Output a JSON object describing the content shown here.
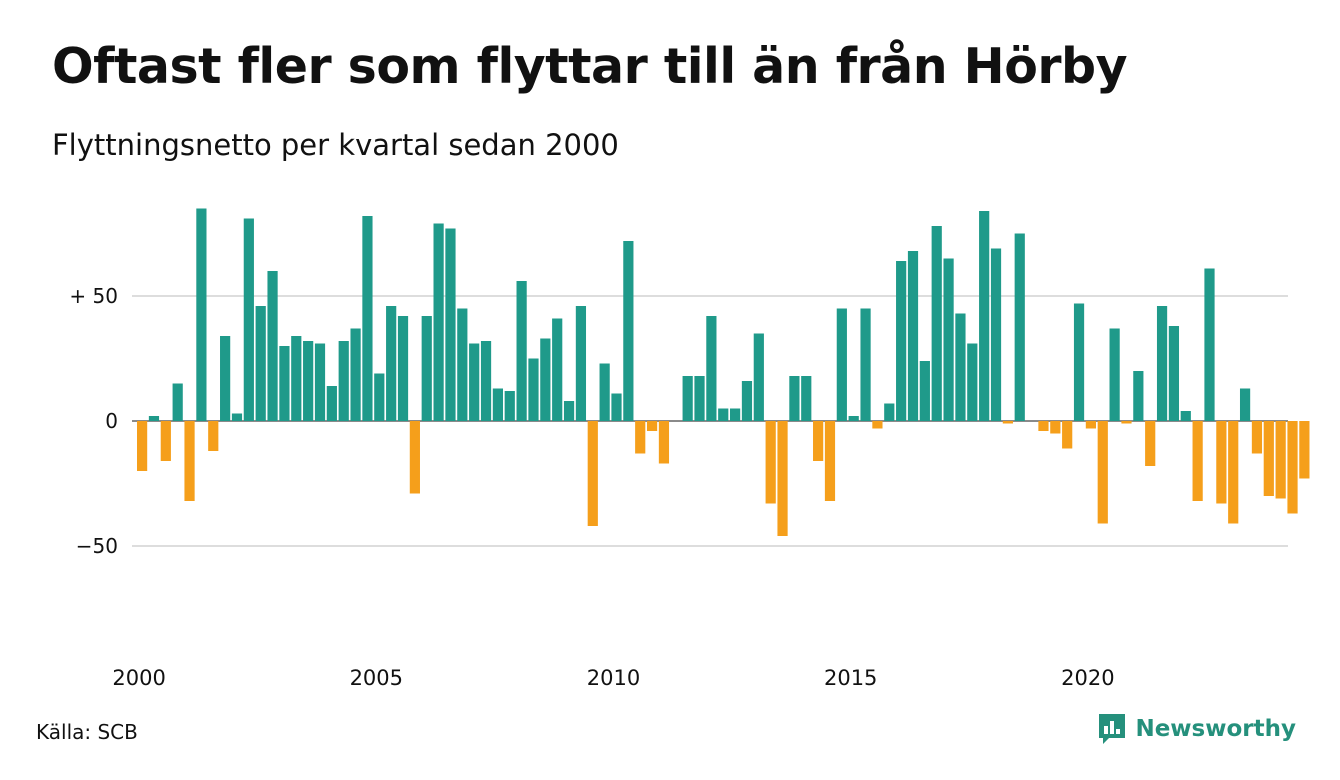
{
  "header": {
    "title": "Oftast fler som flyttar till än från Hörby",
    "subtitle": "Flyttningsnetto per kvartal sedan 2000"
  },
  "footer": {
    "source": "Källa: SCB",
    "brand": "Newsworthy",
    "brand_icon": "newsworthy-chart-bubble-icon"
  },
  "colors": {
    "positive": "#1f9a8a",
    "negative": "#f59f1b",
    "grid": "#dddddd",
    "brand": "#25907c"
  },
  "chart_data": {
    "type": "bar",
    "title": "Oftast fler som flyttar till än från Hörby",
    "subtitle": "Flyttningsnetto per kvartal sedan 2000",
    "x_unit": "quarter",
    "first_quarter": "2000 Q1",
    "x_tick_labels": [
      "2000",
      "2005",
      "2010",
      "2015",
      "2020"
    ],
    "y_tick_values": [
      -50,
      0,
      50
    ],
    "y_tick_labels": [
      "−50",
      "0",
      "+ 50"
    ],
    "ylim": [
      -86,
      89
    ],
    "grid": "horizontal",
    "series": [
      {
        "values": [
          -20,
          2,
          -16,
          15,
          -32,
          85,
          -12,
          34,
          3,
          81,
          46,
          60,
          30,
          34,
          32,
          31,
          14,
          32,
          37,
          82,
          19,
          46,
          42,
          -29,
          42,
          79,
          77,
          45,
          31,
          32,
          13,
          12,
          56,
          25,
          33,
          41,
          8,
          46,
          -42,
          23,
          11,
          72,
          -13,
          -4,
          -17,
          0,
          18,
          18,
          42,
          5,
          5,
          16,
          35,
          -33,
          -46,
          18,
          18,
          -16,
          -32,
          45,
          2,
          45,
          -3,
          7,
          64,
          68,
          24,
          78,
          65,
          43,
          31,
          84,
          69,
          -1,
          75,
          0,
          -4,
          -5,
          -11,
          47,
          -3,
          -41,
          37,
          -1,
          20,
          -18,
          46,
          38,
          4,
          -32,
          61,
          -33,
          -41,
          13,
          -13,
          -30,
          -31,
          -37,
          -23
        ]
      }
    ]
  }
}
